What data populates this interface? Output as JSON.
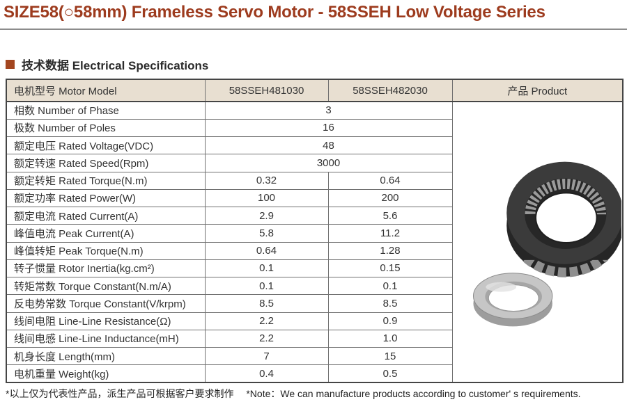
{
  "page": {
    "title": "SIZE58(○58mm) Frameless Servo Motor - 58SSEH Low Voltage Series"
  },
  "section": {
    "heading": "技术数据 Electrical Specifications"
  },
  "table": {
    "header": {
      "model_label": "电机型号 Motor Model",
      "models": [
        "58SSEH481030",
        "58SSEH482030"
      ],
      "product_label": "产品 Product"
    },
    "rows": [
      {
        "label": "相数 Number of Phase",
        "merged": "3"
      },
      {
        "label": "极数 Number of Poles",
        "merged": "16"
      },
      {
        "label": "额定电压 Rated Voltage(VDC)",
        "merged": "48"
      },
      {
        "label": "额定转速 Rated Speed(Rpm)",
        "merged": "3000"
      },
      {
        "label": "额定转矩 Rated Torque(N.m)",
        "values": [
          "0.32",
          "0.64"
        ]
      },
      {
        "label": "额定功率 Rated Power(W)",
        "values": [
          "100",
          "200"
        ]
      },
      {
        "label": "额定电流 Rated Current(A)",
        "values": [
          "2.9",
          "5.6"
        ]
      },
      {
        "label": "峰值电流 Peak Current(A)",
        "values": [
          "5.8",
          "11.2"
        ]
      },
      {
        "label": "峰值转矩 Peak Torque(N.m)",
        "values": [
          "0.64",
          "1.28"
        ]
      },
      {
        "label": "转子惯量 Rotor Inertia(kg.cm²)",
        "values": [
          "0.1",
          "0.15"
        ]
      },
      {
        "label": "转矩常数 Torque Constant(N.m/A)",
        "values": [
          "0.1",
          "0.1"
        ]
      },
      {
        "label": "反电势常数 Torque Constant(V/krpm)",
        "values": [
          "8.5",
          "8.5"
        ]
      },
      {
        "label": "线间电阻 Line-Line Resistance(Ω)",
        "values": [
          "2.2",
          "0.9"
        ]
      },
      {
        "label": "线间电感 Line-Line Inductance(mH)",
        "values": [
          "2.2",
          "1.0"
        ]
      },
      {
        "label": "机身长度 Length(mm)",
        "values": [
          "7",
          "15"
        ]
      },
      {
        "label": "电机重量 Weight(kg)",
        "values": [
          "0.4",
          "0.5"
        ]
      }
    ],
    "product_images": [
      "stator-ring-photo",
      "rotor-ring-photo"
    ]
  },
  "footnote": {
    "cn": "*以上仅为代表性产品，派生产品可根据客户要求制作",
    "en": "*Note：We can manufacture products according to customer' s requirements."
  },
  "colors": {
    "title_text": "#9d3b1e",
    "rule": "#8c8c8c",
    "bullet": "#a3461f",
    "header_bg": "#e8dfd1",
    "border_dark": "#454545",
    "border_mid": "#707070",
    "text": "#333333",
    "footnote_text": "#1f1f1f"
  }
}
